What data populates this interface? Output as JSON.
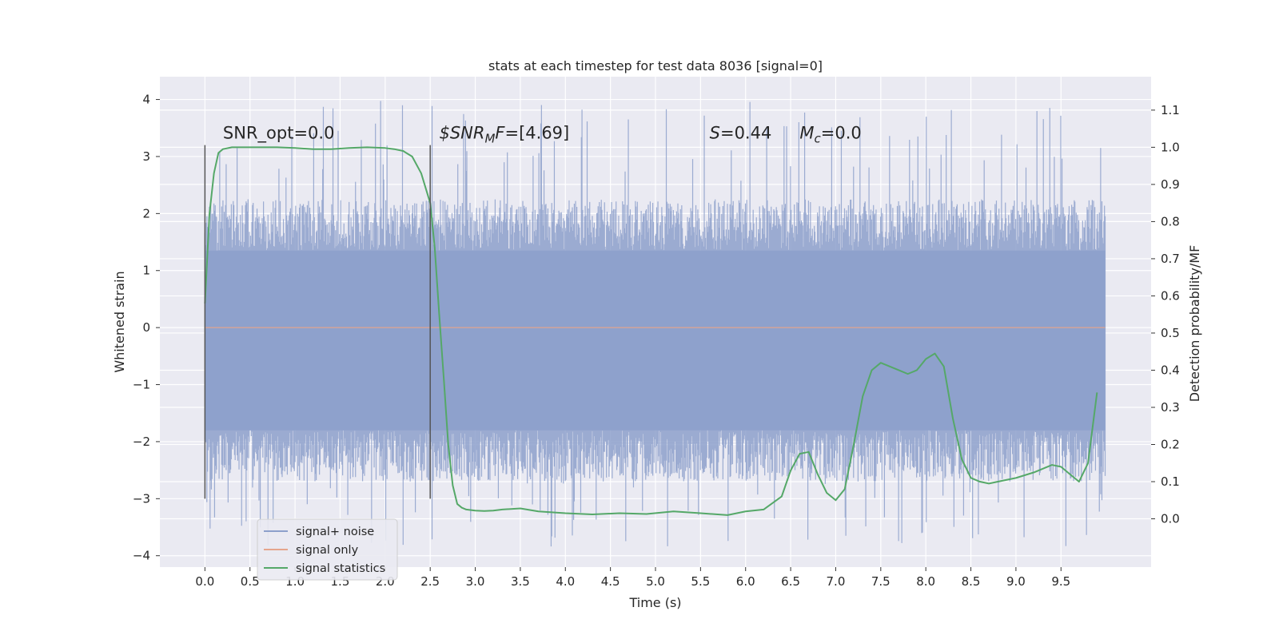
{
  "chart_data": {
    "type": "line",
    "title": "stats at each timestep for test data 8036 [signal=0]",
    "xlabel": "Time (s)",
    "ylabel": "Whitened strain",
    "y2label": "Detection probability/MF",
    "xlim": [
      -0.5,
      10.5
    ],
    "ylim": [
      -4.2,
      4.4
    ],
    "y2lim": [
      -0.13,
      1.19
    ],
    "x_ticks": [
      0.0,
      0.5,
      1.0,
      1.5,
      2.0,
      2.5,
      3.0,
      3.5,
      4.0,
      4.5,
      5.0,
      5.5,
      6.0,
      6.5,
      7.0,
      7.5,
      8.0,
      8.5,
      9.0,
      9.5
    ],
    "x_tick_labels": [
      "0.0",
      "0.5",
      "1.0",
      "1.5",
      "2.0",
      "2.5",
      "3.0",
      "3.5",
      "4.0",
      "4.5",
      "5.0",
      "5.5",
      "6.0",
      "6.5",
      "7.0",
      "7.5",
      "8.0",
      "8.5",
      "9.0",
      "9.5"
    ],
    "y_ticks": [
      -4,
      -3,
      -2,
      -1,
      0,
      1,
      2,
      3,
      4
    ],
    "y_tick_labels": [
      "−4",
      "−3",
      "−2",
      "−1",
      "0",
      "1",
      "2",
      "3",
      "4"
    ],
    "y2_ticks": [
      0.0,
      0.1,
      0.2,
      0.3,
      0.4,
      0.5,
      0.6,
      0.7,
      0.8,
      0.9,
      1.0,
      1.1
    ],
    "y2_tick_labels": [
      "0.0",
      "0.1",
      "0.2",
      "0.3",
      "0.4",
      "0.5",
      "0.6",
      "0.7",
      "0.8",
      "0.9",
      "1.0",
      "1.1"
    ],
    "grid": true,
    "legend": {
      "placement": "lower-left",
      "entries": [
        {
          "label": "signal+ noise",
          "color": "#8da0cb"
        },
        {
          "label": "signal only",
          "color": "#e5a58c"
        },
        {
          "label": "signal statistics",
          "color": "#55a868"
        }
      ]
    },
    "annotations": [
      {
        "text": "SNR_opt=0.0",
        "x": 0.2,
        "y": 3.2
      },
      {
        "text": "$SNR_MF=[4.69]",
        "x": 2.6,
        "y": 3.2
      },
      {
        "text": "S=0.44",
        "x": 5.6,
        "y": 3.2
      },
      {
        "text": "Mc=0.0",
        "x": 6.6,
        "y": 3.2
      }
    ],
    "vertical_markers": [
      {
        "x": 0.0,
        "ymin": -3.0,
        "ymax": 3.2
      },
      {
        "x": 2.5,
        "ymin": -3.0,
        "ymax": 3.2
      }
    ],
    "series": [
      {
        "name": "signal+ noise",
        "color": "#8da0cb",
        "t_range": [
          0.0,
          9.99
        ],
        "core_band": [
          -1.8,
          1.35
        ],
        "spike_range": [
          -3.85,
          4.05
        ],
        "note": "dense noise time series"
      },
      {
        "name": "signal only",
        "color": "#e5a58c",
        "x": [
          0.0,
          9.99
        ],
        "values": [
          0.0,
          0.0
        ]
      },
      {
        "name": "signal statistics",
        "color": "#55a868",
        "axis": "right",
        "x": [
          0.0,
          0.05,
          0.1,
          0.15,
          0.2,
          0.3,
          0.5,
          0.8,
          1.0,
          1.2,
          1.4,
          1.6,
          1.8,
          2.0,
          2.1,
          2.2,
          2.3,
          2.4,
          2.5,
          2.55,
          2.6,
          2.65,
          2.7,
          2.75,
          2.8,
          2.85,
          2.9,
          3.0,
          3.1,
          3.2,
          3.3,
          3.5,
          3.7,
          4.0,
          4.3,
          4.6,
          4.9,
          5.2,
          5.5,
          5.8,
          6.0,
          6.2,
          6.4,
          6.5,
          6.6,
          6.7,
          6.8,
          6.9,
          7.0,
          7.1,
          7.2,
          7.3,
          7.4,
          7.5,
          7.6,
          7.7,
          7.8,
          7.9,
          8.0,
          8.1,
          8.2,
          8.3,
          8.4,
          8.5,
          8.6,
          8.7,
          8.8,
          9.0,
          9.2,
          9.4,
          9.5,
          9.6,
          9.7,
          9.8,
          9.9
        ],
        "values": [
          0.58,
          0.82,
          0.93,
          0.985,
          0.995,
          1.0,
          1.0,
          1.0,
          0.998,
          0.995,
          0.995,
          0.998,
          1.0,
          0.998,
          0.995,
          0.99,
          0.975,
          0.93,
          0.85,
          0.73,
          0.55,
          0.38,
          0.2,
          0.09,
          0.04,
          0.03,
          0.025,
          0.022,
          0.021,
          0.022,
          0.025,
          0.028,
          0.02,
          0.015,
          0.012,
          0.015,
          0.013,
          0.02,
          0.015,
          0.01,
          0.02,
          0.025,
          0.06,
          0.13,
          0.175,
          0.18,
          0.12,
          0.07,
          0.05,
          0.08,
          0.2,
          0.33,
          0.4,
          0.42,
          0.41,
          0.4,
          0.39,
          0.4,
          0.43,
          0.445,
          0.41,
          0.27,
          0.16,
          0.11,
          0.1,
          0.095,
          0.1,
          0.11,
          0.125,
          0.145,
          0.14,
          0.12,
          0.1,
          0.15,
          0.34
        ]
      }
    ]
  }
}
